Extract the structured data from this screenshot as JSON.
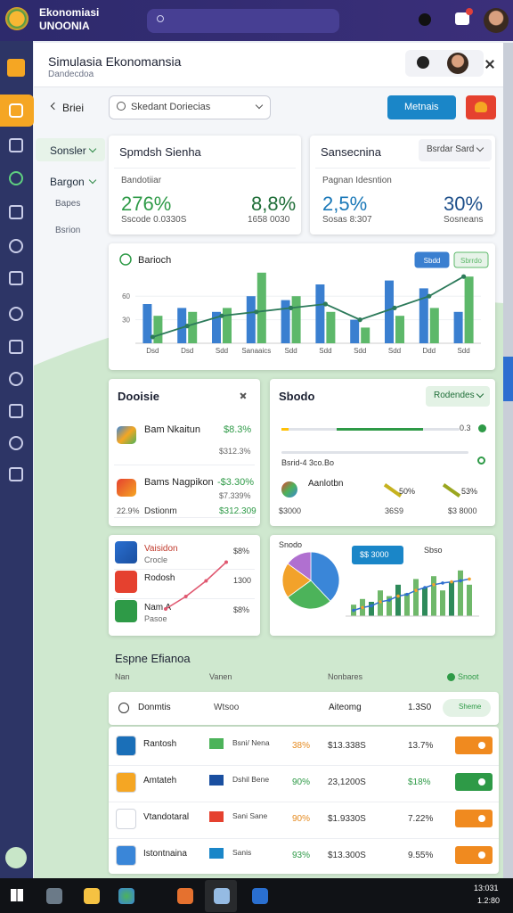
{
  "app": {
    "name": "Ekonomiasi",
    "sub": "UNOONIA"
  },
  "window": {
    "title": "Simulasia Ekonomansia",
    "subtitle": "Dandecdoa"
  },
  "toolbar": {
    "back": "Briei",
    "select": "Skedant Doriecias",
    "action": "Metnais"
  },
  "subnav": [
    "Sonsler",
    "Bargon",
    "Bapes",
    "Bsrion"
  ],
  "kpi": [
    {
      "title": "Spmdsh Sienha",
      "label": "Bandotiiar",
      "values": [
        "276%",
        "8,8%"
      ],
      "notes": [
        "Sscode 0.0330S",
        "1658 0030"
      ]
    },
    {
      "title": "Sansecnina",
      "menu": "Bsrdar Sard",
      "label": "Pagnan Idesntion",
      "values": [
        "2,5%",
        "30%"
      ],
      "notes": [
        "Sosas 8:307",
        "Sosneans"
      ]
    }
  ],
  "chart_data": [
    {
      "type": "bar",
      "title": "Barioch",
      "categories": [
        "Dsd",
        "Dsd",
        "Sdd",
        "Sanaaics",
        "Sdd",
        "Sdd",
        "Sdd",
        "Sdd",
        "Ddd",
        "Sdd"
      ],
      "series": [
        {
          "name": "Sbdd",
          "color": "#3a7fd0",
          "values": [
            50,
            45,
            40,
            60,
            55,
            75,
            30,
            80,
            70,
            40
          ]
        },
        {
          "name": "Sbrrdo",
          "color": "#5db86a",
          "values": [
            35,
            40,
            45,
            90,
            60,
            40,
            20,
            35,
            45,
            85
          ]
        }
      ],
      "line": {
        "color": "#2c7a5a",
        "values": [
          8,
          22,
          35,
          40,
          45,
          50,
          30,
          45,
          60,
          85
        ]
      },
      "ylim": [
        0,
        100
      ],
      "yticks": [
        30,
        60
      ]
    },
    {
      "type": "pie",
      "values": [
        38,
        27,
        20,
        15
      ],
      "colors": [
        "#3a86d8",
        "#4cb35a",
        "#f2a22a",
        "#b070d0"
      ]
    },
    {
      "type": "combo",
      "title": "Snodo",
      "label": "Sbso",
      "badge": "$$ 3000",
      "color": "#6fb86a",
      "values": [
        20,
        30,
        25,
        45,
        35,
        55,
        40,
        65,
        50,
        70,
        45,
        60,
        80,
        55
      ],
      "line": {
        "color": "#2f6fd0",
        "values": [
          10,
          15,
          18,
          25,
          28,
          35,
          38,
          45,
          50,
          55,
          58,
          60,
          62,
          65
        ]
      },
      "ylim": [
        0,
        100
      ]
    },
    {
      "type": "line",
      "color": "#e05870",
      "values": [
        10,
        30,
        55,
        85
      ],
      "ylim": [
        0,
        100
      ]
    }
  ],
  "risk": {
    "title": "Dooisie",
    "rows": [
      {
        "name": "Bam Nkaitun",
        "value": "$8.3%",
        "sub": "$312.3%"
      },
      {
        "name": "Bams Nagpikon",
        "value": "-$3.30%",
        "sub": "$7.339%"
      }
    ],
    "footer": [
      "22.9%",
      "Dstionm",
      "$312.309"
    ]
  },
  "settings": {
    "title": "Sbodo",
    "menu": "Rodendes",
    "knob": "0.3",
    "slider_label": "Bsrid-4 3co.Bo",
    "row": [
      "Aanlotbn",
      "50%",
      "53%"
    ],
    "footer": [
      "$3000",
      "36S9",
      "$3 8000"
    ]
  },
  "watch": [
    {
      "name": "Vaisidon",
      "sub": "Crocle",
      "value": "$8%"
    },
    {
      "name": "Rodosh",
      "sub": "",
      "value": "1300"
    },
    {
      "name": "Nam A",
      "sub": "Pasoe",
      "value": "$8%"
    }
  ],
  "table": {
    "title": "Espne Efianoa",
    "headers": [
      "Nan",
      "Vanen",
      "Nonbares"
    ],
    "filter": "Snoot",
    "summary": [
      "Donmtis",
      "Wtsoo",
      "Aiteomg",
      "1.3S0",
      "Sheme"
    ],
    "rows": [
      {
        "name": "Rantosh",
        "sub": "Bsni/ Nena",
        "pct": "38%",
        "value": "$13.338S",
        "change": "13.7%"
      },
      {
        "name": "Amtateh",
        "sub": "Dshil Bene",
        "pct": "90%",
        "value": "23,1200S",
        "change": "$18%"
      },
      {
        "name": "Vtandotaral",
        "sub": "Sani Sane",
        "pct": "90%",
        "value": "$1.9330S",
        "change": "7.22%"
      },
      {
        "name": "Istontnaina",
        "sub": "Sanis",
        "pct": "93%",
        "value": "$13.300S",
        "change": "9.55%"
      }
    ]
  },
  "taskbar": {
    "time": "13:031",
    "date": "1.2:80"
  }
}
